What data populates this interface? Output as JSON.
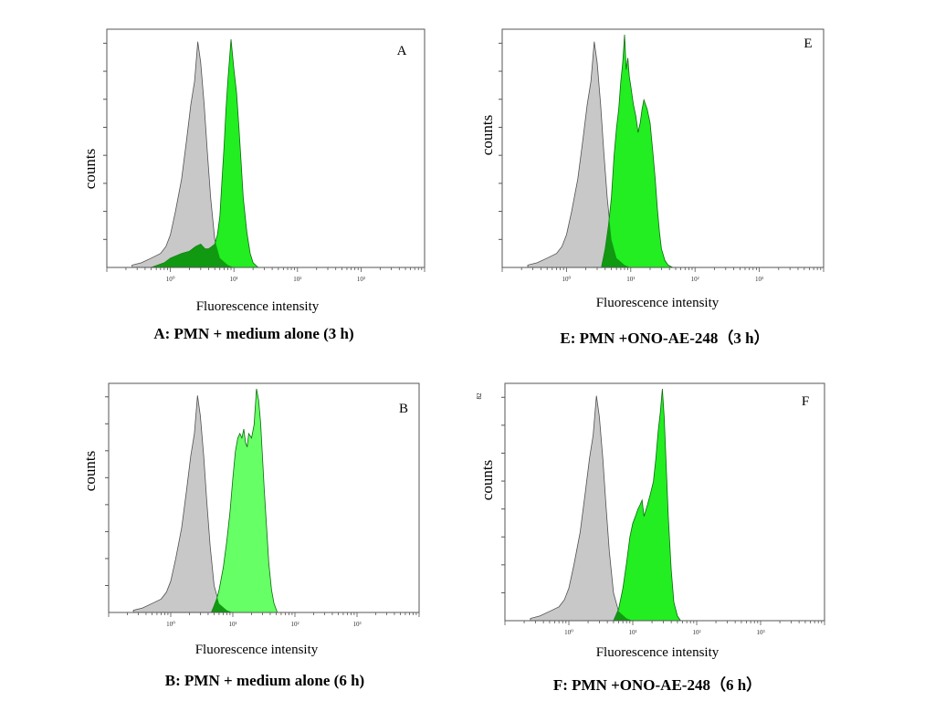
{
  "colors": {
    "control": "#c8c8c8",
    "control_stroke": "#505050",
    "green_bright": "#22ee22",
    "green_light": "#66ff66",
    "green_overlap": "#119911",
    "axis": "#555555"
  },
  "chart_data": [
    {
      "type": "area",
      "panel_label": "A",
      "caption": "A: PMN + medium alone (3 h)",
      "xlabel": "Fluorescence intensity",
      "ylabel": "counts",
      "x_scale": "log",
      "xlim": [
        0.1,
        10000
      ],
      "xticks": [
        "10⁰",
        "10¹",
        "10²",
        "10³"
      ],
      "ylim": [
        0,
        100
      ],
      "series": [
        {
          "role": "control",
          "x": [
            0.25,
            0.35,
            0.5,
            0.7,
            0.85,
            1.0,
            1.2,
            1.5,
            1.8,
            2.1,
            2.4,
            2.7,
            3.0,
            3.4,
            3.8,
            4.3,
            5.0,
            6.0,
            8.0,
            10.0
          ],
          "y": [
            1,
            2,
            4,
            6,
            9,
            14,
            24,
            38,
            55,
            70,
            80,
            97,
            88,
            70,
            50,
            30,
            12,
            4,
            1,
            0
          ]
        },
        {
          "role": "sample",
          "color": "green_bright",
          "x": [
            0.5,
            0.8,
            1.0,
            1.5,
            2.0,
            2.5,
            3.0,
            3.5,
            4.0,
            4.5,
            5.0,
            5.5,
            6.0,
            6.5,
            7.0,
            7.5,
            8.0,
            9.0,
            10.0,
            11.0,
            12.0,
            13.0,
            14.0,
            16.0,
            18.0,
            20.0,
            24.0
          ],
          "y": [
            0,
            2,
            4,
            6,
            7,
            9,
            10,
            8,
            8,
            9,
            10,
            14,
            22,
            38,
            52,
            68,
            80,
            98,
            85,
            75,
            60,
            45,
            30,
            15,
            6,
            2,
            0
          ]
        }
      ]
    },
    {
      "type": "area",
      "panel_label": "E",
      "caption": "E: PMN +ONO-AE-248（3 h）",
      "xlabel": "Fluorescence intensity",
      "ylabel": "counts",
      "x_scale": "log",
      "xlim": [
        0.1,
        10000
      ],
      "xticks": [
        "10⁰",
        "10¹",
        "10²",
        "10³"
      ],
      "ylim": [
        0,
        100
      ],
      "series": [
        {
          "role": "control",
          "x": [
            0.25,
            0.35,
            0.5,
            0.7,
            0.85,
            1.0,
            1.2,
            1.5,
            1.8,
            2.1,
            2.4,
            2.7,
            3.0,
            3.4,
            3.8,
            4.3,
            5.0,
            6.0,
            8.0,
            10.0
          ],
          "y": [
            1,
            2,
            4,
            6,
            9,
            14,
            24,
            38,
            55,
            70,
            80,
            97,
            88,
            70,
            50,
            30,
            12,
            4,
            1,
            0
          ]
        },
        {
          "role": "sample",
          "color": "green_bright",
          "x": [
            3.5,
            4.0,
            4.5,
            5.0,
            5.5,
            6.0,
            6.5,
            7.0,
            7.5,
            8.0,
            8.5,
            9.0,
            9.5,
            10.0,
            11.0,
            12.0,
            13.0,
            14.0,
            15.0,
            16.0,
            18.0,
            20.0,
            22.0,
            24.0,
            26.0,
            28.0,
            30.0,
            34.0,
            38.0,
            45.0
          ],
          "y": [
            0,
            8,
            18,
            30,
            48,
            60,
            68,
            80,
            88,
            100,
            85,
            90,
            82,
            78,
            70,
            65,
            58,
            62,
            68,
            72,
            68,
            62,
            50,
            38,
            25,
            15,
            8,
            3,
            1,
            0
          ]
        }
      ]
    },
    {
      "type": "area",
      "panel_label": "B",
      "caption": "B: PMN + medium alone (6 h)",
      "xlabel": "Fluorescence intensity",
      "ylabel": "counts",
      "x_scale": "log",
      "xlim": [
        0.1,
        10000
      ],
      "xticks": [
        "10⁰",
        "10¹",
        "10²",
        "10³"
      ],
      "ylim": [
        0,
        100
      ],
      "series": [
        {
          "role": "control",
          "x": [
            0.25,
            0.35,
            0.5,
            0.7,
            0.85,
            1.0,
            1.2,
            1.5,
            1.8,
            2.1,
            2.4,
            2.7,
            3.0,
            3.4,
            3.8,
            4.3,
            5.0,
            6.0,
            8.0,
            10.0
          ],
          "y": [
            1,
            2,
            4,
            6,
            9,
            14,
            24,
            38,
            55,
            70,
            80,
            97,
            88,
            70,
            50,
            30,
            12,
            4,
            1,
            0
          ]
        },
        {
          "role": "sample",
          "color": "green_light",
          "x": [
            4.5,
            5.0,
            5.5,
            6.0,
            7.0,
            8.0,
            9.0,
            10.0,
            11.0,
            12.0,
            13.0,
            14.0,
            15.0,
            16.0,
            17.0,
            18.0,
            20.0,
            22.0,
            24.0,
            26.0,
            28.0,
            30.0,
            32.0,
            35.0,
            38.0,
            42.0,
            46.0,
            52.0
          ],
          "y": [
            0,
            3,
            6,
            10,
            20,
            32,
            45,
            60,
            72,
            78,
            80,
            78,
            82,
            76,
            74,
            80,
            78,
            84,
            100,
            95,
            85,
            70,
            55,
            38,
            22,
            10,
            4,
            0
          ]
        }
      ]
    },
    {
      "type": "area",
      "panel_label": "F",
      "caption": "F: PMN +ONO-AE-248（6 h）",
      "xlabel": "Fluorescence intensity",
      "ylabel": "counts",
      "ytick_top": "82",
      "x_scale": "log",
      "xlim": [
        0.1,
        10000
      ],
      "xticks": [
        "10⁰",
        "10¹",
        "10²",
        "10³"
      ],
      "ylim": [
        0,
        100
      ],
      "series": [
        {
          "role": "control",
          "x": [
            0.25,
            0.35,
            0.5,
            0.7,
            0.85,
            1.0,
            1.2,
            1.5,
            1.8,
            2.1,
            2.4,
            2.7,
            3.0,
            3.4,
            3.8,
            4.3,
            5.0,
            6.0,
            8.0,
            10.0
          ],
          "y": [
            1,
            2,
            4,
            6,
            9,
            14,
            24,
            38,
            55,
            70,
            80,
            97,
            88,
            70,
            50,
            30,
            12,
            4,
            1,
            0
          ]
        },
        {
          "role": "sample",
          "color": "green_bright",
          "x": [
            5.0,
            6.0,
            7.0,
            8.0,
            9.0,
            10.0,
            11.0,
            12.0,
            13.0,
            14.0,
            15.0,
            17.0,
            19.0,
            21.0,
            23.0,
            25.0,
            27.0,
            29.0,
            31.0,
            33.0,
            36.0,
            40.0,
            44.0,
            50.0,
            56.0
          ],
          "y": [
            0,
            5,
            14,
            25,
            36,
            42,
            45,
            48,
            50,
            52,
            45,
            50,
            55,
            60,
            70,
            82,
            90,
            100,
            88,
            70,
            45,
            22,
            8,
            2,
            0
          ]
        }
      ]
    }
  ]
}
